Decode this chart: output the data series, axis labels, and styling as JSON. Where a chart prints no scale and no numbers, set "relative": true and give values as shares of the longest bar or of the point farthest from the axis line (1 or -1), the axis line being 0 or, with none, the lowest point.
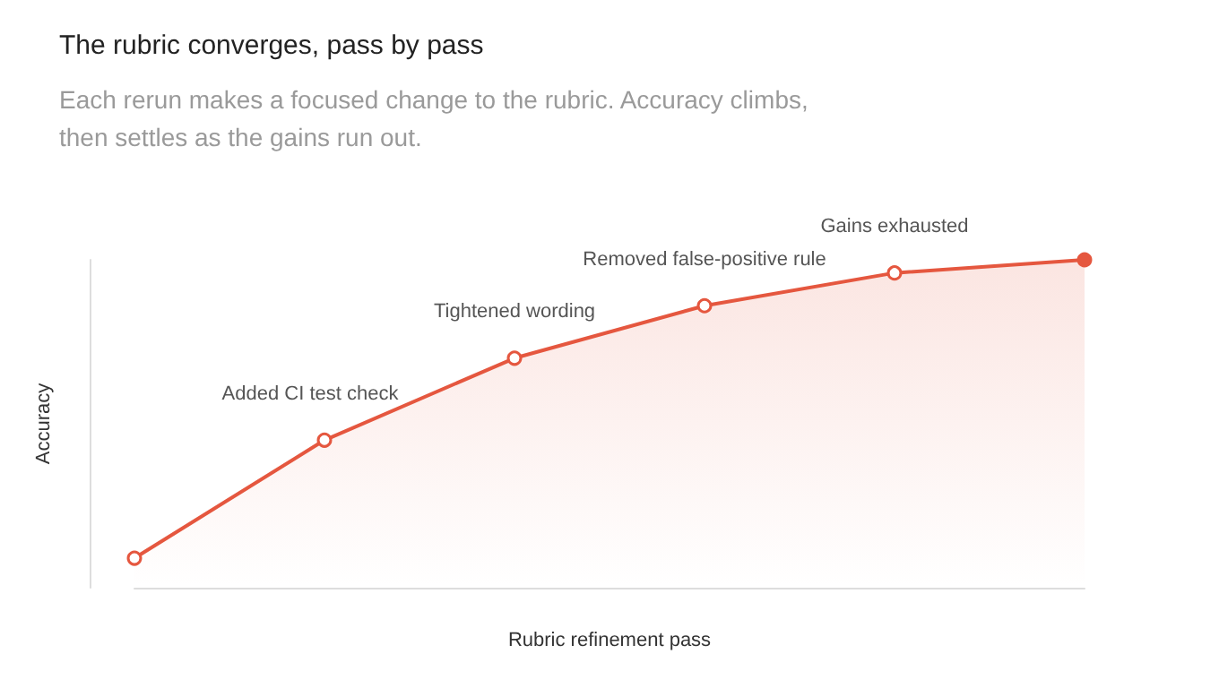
{
  "chart_data": {
    "type": "area",
    "relative": true,
    "title": "The rubric converges, pass by pass",
    "subtitle": "Each rerun makes a focused change to the rubric. Accuracy climbs,\nthen settles as the gains run out.",
    "xlabel": "Rubric refinement pass",
    "ylabel": "Accuracy",
    "categories": [
      null,
      null,
      null,
      null,
      null,
      null
    ],
    "series": [
      {
        "color": "#e5573f",
        "values": [
          0.09,
          0.45,
          0.7,
          0.86,
          0.96,
          1
        ]
      }
    ],
    "annotations": [
      "Added CI test check",
      "Tightened wording",
      "Removed false-positive rule",
      "Gains exhausted"
    ],
    "marker": "circle"
  }
}
